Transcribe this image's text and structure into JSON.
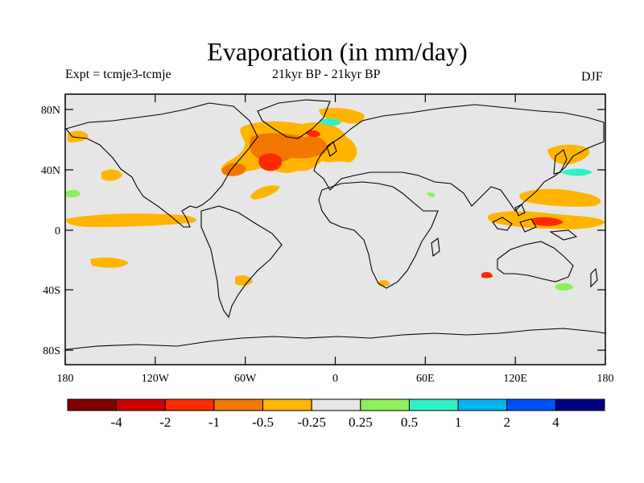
{
  "title": "Evaporation (in mm/day)",
  "subtitle_left": "Expt = tcmje3-tcmje",
  "subtitle_center": "21kyr BP - 21kyr BP",
  "subtitle_right": "DJF",
  "map": {
    "background_color": "#e6e6e6",
    "lat_ticks": [
      "80N",
      "40N",
      "0",
      "40S",
      "80S"
    ],
    "lon_ticks": [
      "180",
      "120W",
      "60W",
      "0",
      "60E",
      "120E",
      "180"
    ]
  },
  "colorbar": {
    "colors": [
      "#800000",
      "#cc0000",
      "#ff2a00",
      "#f07800",
      "#ffb400",
      "#e6e6e6",
      "#8cf05a",
      "#30f0c8",
      "#00b4f0",
      "#0050ff",
      "#000080"
    ],
    "labels": [
      "-4",
      "-2",
      "-1",
      "-0.5",
      "-0.25",
      "0.25",
      "0.5",
      "1",
      "2",
      "4"
    ]
  }
}
